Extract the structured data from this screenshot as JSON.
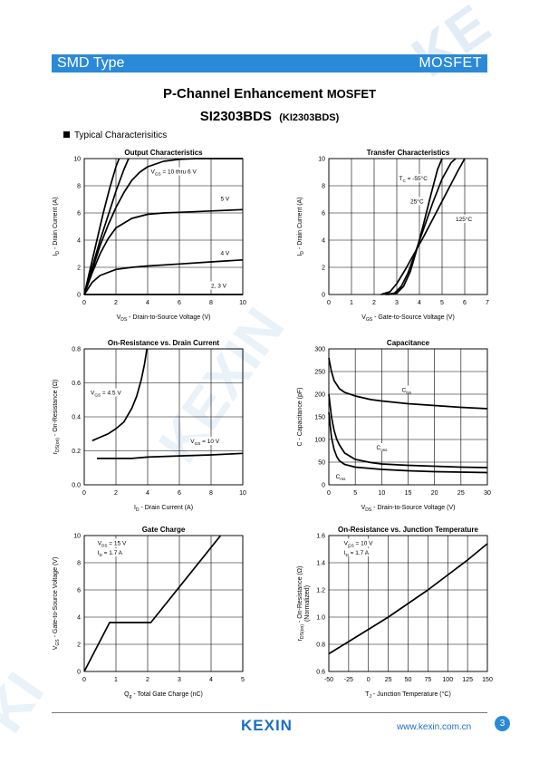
{
  "header": {
    "left": "SMD Type",
    "right": "MOSFET"
  },
  "title_main": "P-Channel Enhancement",
  "title_main_suffix": "MOSFET",
  "part_number": "SI2303BDS",
  "part_alt": "(KI2303BDS)",
  "section_label": "Typical  Characterisitics",
  "footer": {
    "logo": "KEXIN",
    "url": "www.kexin.com.cn",
    "page": "3"
  },
  "colors": {
    "header_bar": "#2a8ad8",
    "brand": "#1a6fc4",
    "watermark": "#dbe8f6"
  },
  "chart_data": [
    {
      "id": "output",
      "type": "line",
      "title": "Output Characteristics",
      "xlabel_sym": "V",
      "xlabel_sub": "DS",
      "xlabel_rest": "  -  Drain-to-Source Voltage (V)",
      "ylabel_sym": "I",
      "ylabel_sub": "D",
      "ylabel_rest": "  -  Drain Current (A)",
      "xlim": [
        0,
        10
      ],
      "ylim": [
        0,
        10
      ],
      "xticks": [
        0,
        2,
        4,
        6,
        8,
        10
      ],
      "yticks": [
        0,
        2,
        4,
        6,
        8,
        10
      ],
      "grid": true,
      "series": [
        {
          "name": "10 thru 6 V",
          "x": [
            0,
            0.4,
            0.8,
            1.2,
            1.6,
            2,
            2.2
          ],
          "y": [
            0,
            2,
            4,
            6,
            7.8,
            9.4,
            10
          ]
        },
        {
          "name": "",
          "x": [
            0,
            0.5,
            1,
            1.5,
            2,
            2.5,
            2.8
          ],
          "y": [
            0,
            2,
            4,
            5.8,
            7.6,
            9.2,
            10
          ]
        },
        {
          "name": "",
          "x": [
            0,
            0.5,
            1,
            1.5,
            2,
            2.5,
            3,
            3.5,
            4,
            5,
            6,
            7,
            8,
            9,
            10
          ],
          "y": [
            0,
            1.8,
            3.6,
            5.1,
            6.4,
            7.5,
            8.4,
            9.0,
            9.4,
            9.8,
            9.95,
            10,
            10,
            10,
            10
          ]
        },
        {
          "name": "5 V",
          "x": [
            0,
            0.5,
            1,
            1.5,
            2,
            3,
            4,
            5,
            6,
            8,
            10
          ],
          "y": [
            0,
            1.6,
            3.0,
            4.1,
            4.9,
            5.6,
            5.9,
            6.0,
            6.05,
            6.15,
            6.25
          ]
        },
        {
          "name": "4 V",
          "x": [
            0,
            0.5,
            1,
            2,
            3,
            4,
            6,
            8,
            10
          ],
          "y": [
            0,
            0.9,
            1.4,
            1.85,
            2.0,
            2.1,
            2.25,
            2.4,
            2.55
          ]
        },
        {
          "name": "2, 3 V",
          "x": [
            0,
            10
          ],
          "y": [
            0,
            0
          ]
        }
      ],
      "annotations": [
        {
          "sym": "V",
          "sub": "GS",
          "text": " = 10 thru 6 V",
          "x": 4.2,
          "y": 8.9
        },
        {
          "sym": "",
          "sub": "",
          "text": "5 V",
          "x": 8.6,
          "y": 6.9
        },
        {
          "sym": "",
          "sub": "",
          "text": "4 V",
          "x": 8.6,
          "y": 2.9
        },
        {
          "sym": "",
          "sub": "",
          "text": "2, 3 V",
          "x": 8.0,
          "y": 0.5
        }
      ]
    },
    {
      "id": "transfer",
      "type": "line",
      "title": "Transfer Characteristics",
      "xlabel_sym": "V",
      "xlabel_sub": "GS",
      "xlabel_rest": "  -  Gate-to-Source Voltage (V)",
      "ylabel_sym": "I",
      "ylabel_sub": "D",
      "ylabel_rest": "  -  Drain Current (A)",
      "xlim": [
        0,
        7
      ],
      "ylim": [
        0,
        10
      ],
      "xticks": [
        0,
        1,
        2,
        3,
        4,
        5,
        6,
        7
      ],
      "yticks": [
        0,
        2,
        4,
        6,
        8,
        10
      ],
      "grid": true,
      "series": [
        {
          "name": "-55°C",
          "x": [
            2.6,
            3.0,
            3.3,
            3.6,
            3.9,
            4.2,
            4.5,
            4.8,
            5.0
          ],
          "y": [
            0,
            0.1,
            0.6,
            1.7,
            3.4,
            5.3,
            7.3,
            9.2,
            10.0
          ]
        },
        {
          "name": "25°C",
          "x": [
            2.5,
            2.9,
            3.2,
            3.5,
            3.8,
            4.2,
            4.6,
            5.0,
            5.4,
            5.6
          ],
          "y": [
            0,
            0.1,
            0.6,
            1.6,
            3.0,
            4.9,
            6.8,
            8.5,
            9.7,
            10.0
          ]
        },
        {
          "name": "125°C",
          "x": [
            2.3,
            2.7,
            3.0,
            3.4,
            3.8,
            4.2,
            4.7,
            5.2,
            5.7,
            6.0
          ],
          "y": [
            0,
            0.2,
            0.8,
            1.9,
            3.1,
            4.3,
            5.9,
            7.5,
            9.1,
            10.0
          ]
        }
      ],
      "annotations": [
        {
          "sym": "T",
          "sub": "C",
          "text": " = -55°C",
          "x": 3.1,
          "y": 8.4
        },
        {
          "sym": "",
          "sub": "",
          "text": "25°C",
          "x": 3.6,
          "y": 6.7
        },
        {
          "sym": "",
          "sub": "",
          "text": "125°C",
          "x": 5.6,
          "y": 5.4
        }
      ]
    },
    {
      "id": "onres",
      "type": "line",
      "title": "On-Resistance vs. Drain Current",
      "xlabel_sym": "I",
      "xlabel_sub": "D",
      "xlabel_rest": "  -  Drain Current (A)",
      "ylabel_sym": "r",
      "ylabel_sub": "DS(on)",
      "ylabel_rest": "  -  On-Resistance (Ω)",
      "xlim": [
        0,
        10
      ],
      "ylim": [
        0,
        0.8
      ],
      "xticks": [
        0,
        2,
        4,
        6,
        8,
        10
      ],
      "yticks": [
        0.0,
        0.2,
        0.4,
        0.6,
        0.8
      ],
      "yticklabels": [
        "0.0",
        "0.2",
        "0.4",
        "0.6",
        "0.8"
      ],
      "grid": true,
      "series": [
        {
          "name": "4.5 V",
          "x": [
            0.5,
            1,
            1.5,
            2,
            2.5,
            3,
            3.3,
            3.6,
            3.8,
            3.9,
            3.95
          ],
          "y": [
            0.26,
            0.28,
            0.3,
            0.33,
            0.37,
            0.45,
            0.52,
            0.62,
            0.71,
            0.77,
            0.8
          ]
        },
        {
          "name": "10 V",
          "x": [
            0.8,
            2,
            3,
            4,
            6,
            8,
            10
          ],
          "y": [
            0.155,
            0.155,
            0.155,
            0.163,
            0.17,
            0.176,
            0.185
          ]
        }
      ],
      "annotations": [
        {
          "sym": "V",
          "sub": "GS",
          "text": " = 4.5 V",
          "x": 0.4,
          "y": 0.53
        },
        {
          "sym": "V",
          "sub": "GS",
          "text": " = 10 V",
          "x": 6.7,
          "y": 0.245
        }
      ]
    },
    {
      "id": "capacitance",
      "type": "line",
      "title": "Capacitance",
      "xlabel_sym": "V",
      "xlabel_sub": "DS",
      "xlabel_rest": "  -  Drain-to-Source Voltage (V)",
      "ylabel_sym": "C",
      "ylabel_sub": "",
      "ylabel_rest": "  -  Capacitance (pF)",
      "xlim": [
        0,
        30
      ],
      "ylim": [
        0,
        300
      ],
      "xticks": [
        0,
        5,
        10,
        15,
        20,
        25,
        30
      ],
      "yticks": [
        0,
        50,
        100,
        150,
        200,
        250,
        300
      ],
      "grid": true,
      "series": [
        {
          "name": "iss",
          "x": [
            0,
            0.5,
            1,
            2,
            3,
            5,
            8,
            10,
            15,
            20,
            25,
            30
          ],
          "y": [
            280,
            250,
            230,
            212,
            204,
            196,
            188,
            185,
            179,
            175,
            171,
            168
          ]
        },
        {
          "name": "oss",
          "x": [
            0,
            0.5,
            1,
            1.5,
            2,
            3,
            5,
            8,
            10,
            15,
            20,
            25,
            30
          ],
          "y": [
            200,
            150,
            120,
            100,
            88,
            70,
            56,
            49,
            46,
            43,
            41,
            39,
            38
          ]
        },
        {
          "name": "rss",
          "x": [
            0,
            0.5,
            1,
            1.5,
            2,
            3,
            5,
            8,
            10,
            15,
            20,
            25,
            30
          ],
          "y": [
            160,
            105,
            78,
            62,
            53,
            45,
            39,
            36,
            34,
            31,
            29,
            28,
            27
          ]
        }
      ],
      "annotations": [
        {
          "sym": "C",
          "sub": "iss",
          "text": "",
          "x": 13.8,
          "y": 205
        },
        {
          "sym": "C",
          "sub": "oss",
          "text": "",
          "x": 9.0,
          "y": 78
        },
        {
          "sym": "C",
          "sub": "rss",
          "text": "",
          "x": 1.3,
          "y": 14
        }
      ]
    },
    {
      "id": "gatecharge",
      "type": "line",
      "title": "Gate Charge",
      "xlabel_sym": "Q",
      "xlabel_sub": "g",
      "xlabel_rest": "  -  Total Gate Charge (nC)",
      "ylabel_sym": "V",
      "ylabel_sub": "GS",
      "ylabel_rest": "  -  Gate-to-Source Voltage (V)",
      "xlim": [
        0,
        5
      ],
      "ylim": [
        0,
        10
      ],
      "xticks": [
        0,
        1,
        2,
        3,
        4,
        5
      ],
      "yticks": [
        0,
        2,
        4,
        6,
        8,
        10
      ],
      "grid": true,
      "series": [
        {
          "name": "15 V",
          "x": [
            0,
            0.8,
            2.1,
            4.3
          ],
          "y": [
            0,
            3.6,
            3.6,
            10
          ]
        }
      ],
      "annotations": [
        {
          "sym": "V",
          "sub": "DS",
          "text": " = 15 V",
          "x": 0.42,
          "y": 9.3
        },
        {
          "sym": "I",
          "sub": "D",
          "text": " = 1.7 A",
          "x": 0.42,
          "y": 8.6
        }
      ]
    },
    {
      "id": "onrestemp",
      "type": "line",
      "title": "On-Resistance vs. Junction Temperature",
      "xlabel_sym": "T",
      "xlabel_sub": "J",
      "xlabel_rest": " - Junction Temperature (°C)",
      "ylabel_sym": "r",
      "ylabel_sub": "DS(on)",
      "ylabel_rest": "  -  On-Resistance (Ω)",
      "ylabel_line2": "(Normalized)",
      "xlim": [
        -50,
        150
      ],
      "ylim": [
        0.6,
        1.6
      ],
      "xticks": [
        -50,
        -25,
        0,
        25,
        50,
        75,
        100,
        125,
        150
      ],
      "yticks": [
        0.6,
        0.8,
        1.0,
        1.2,
        1.4,
        1.6
      ],
      "yticklabels": [
        "0.6",
        "0.8",
        "1.0",
        "1.2",
        "1.4",
        "1.6"
      ],
      "grid": true,
      "series": [
        {
          "name": "10 V",
          "x": [
            -50,
            -25,
            0,
            25,
            50,
            75,
            100,
            125,
            150
          ],
          "y": [
            0.73,
            0.82,
            0.91,
            1.0,
            1.1,
            1.2,
            1.31,
            1.42,
            1.54
          ]
        }
      ],
      "annotations": [
        {
          "sym": "V",
          "sub": "GS",
          "text": " = 10 V",
          "x": -31,
          "y": 1.53
        },
        {
          "sym": "I",
          "sub": "D",
          "text": " = 1.7 A",
          "x": -31,
          "y": 1.46
        }
      ]
    }
  ]
}
